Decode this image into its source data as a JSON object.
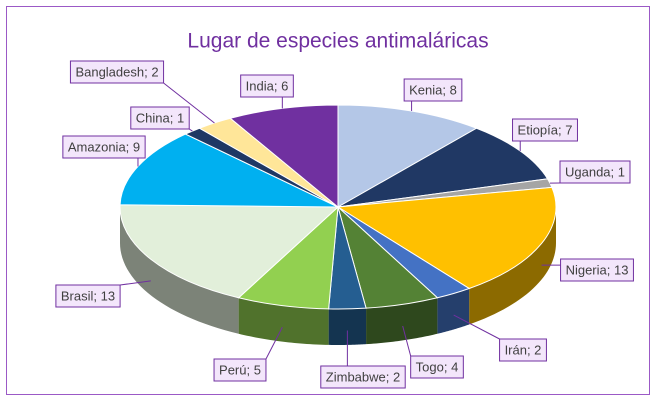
{
  "chart_data": {
    "type": "pie",
    "title": "Lugar de especies antimaláricas",
    "values": [
      8,
      7,
      1,
      13,
      2,
      4,
      2,
      5,
      13,
      9,
      1,
      2,
      6
    ],
    "value_labels": [
      "Kenia; 8",
      "Etiopía; 7",
      "Uganda; 1",
      "Nigeria; 13",
      "Irán; 2",
      "Togo; 4",
      "Zimbabwe; 2",
      "Perú; 5",
      "Brasil; 13",
      "Amazonia; 9",
      "China; 1",
      "Bangladesh; 2",
      "India; 6"
    ],
    "colors": [
      "#b4c7e7",
      "#203864",
      "#a5a5a5",
      "#ffc000",
      "#4472c4",
      "#548235",
      "#255e91",
      "#92d050",
      "#e2efda",
      "#00b0f0",
      "#1f3864",
      "#ffe699",
      "#7030a0"
    ]
  }
}
